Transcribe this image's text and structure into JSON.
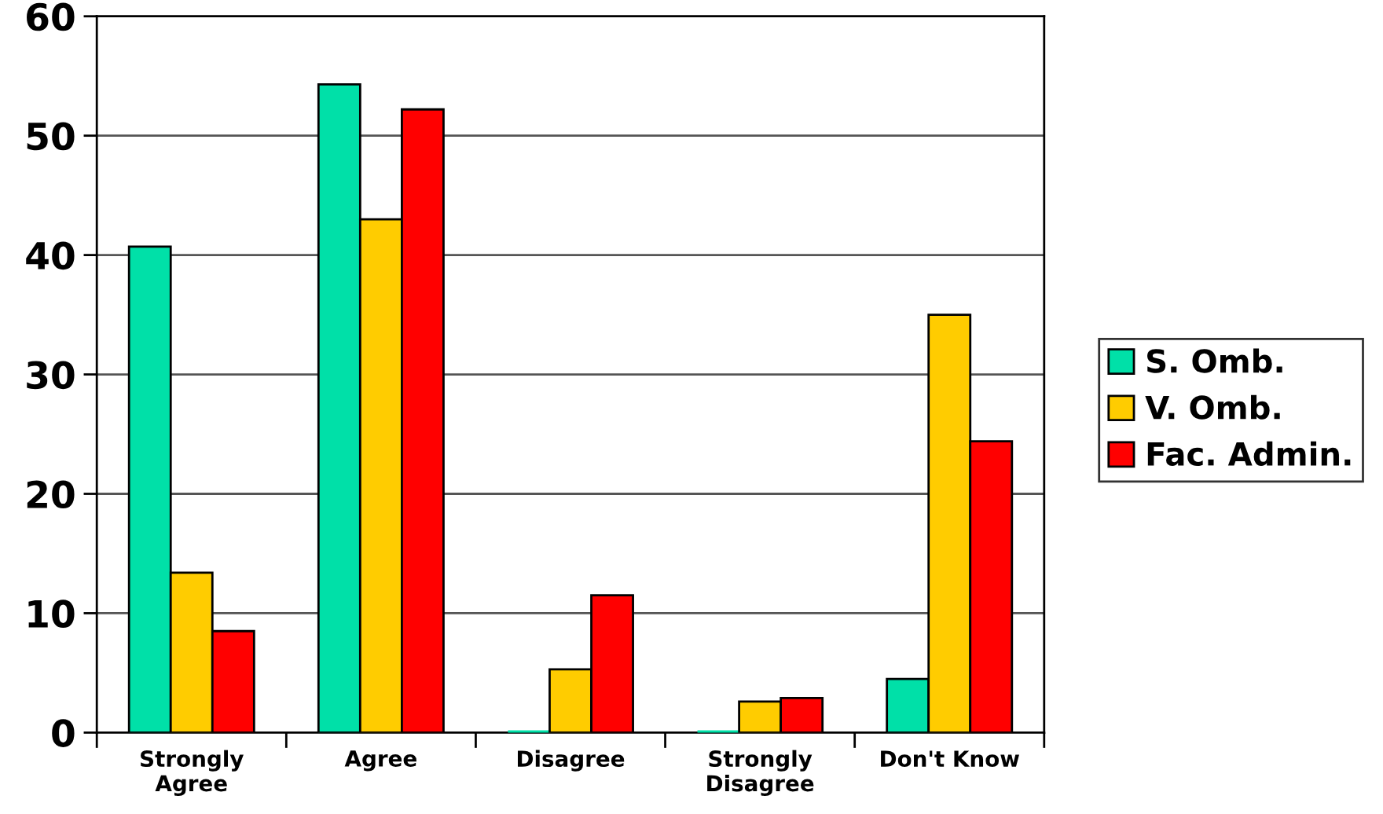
{
  "chart_data": {
    "type": "bar",
    "categories": [
      "Strongly\nAgree",
      "Agree",
      "Disagree",
      "Strongly\nDisagree",
      "Don't Know"
    ],
    "series": [
      {
        "name": "S. Omb.",
        "color": "#00e0a8",
        "values": [
          40.7,
          54.3,
          0,
          0,
          4.5
        ]
      },
      {
        "name": "V. Omb.",
        "color": "#ffcc00",
        "values": [
          13.4,
          43.0,
          5.3,
          2.6,
          35.0
        ]
      },
      {
        "name": "Fac. Admin.",
        "color": "#ff0000",
        "values": [
          8.5,
          52.2,
          11.5,
          2.9,
          24.4
        ]
      }
    ],
    "ylim": [
      0,
      60
    ],
    "yticks": [
      0,
      10,
      20,
      30,
      40,
      50,
      60
    ],
    "grid": "y",
    "legend": "right"
  }
}
